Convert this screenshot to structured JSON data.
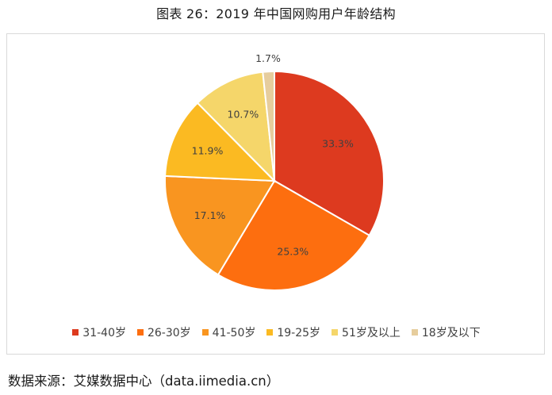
{
  "caption": "图表 26：2019 年中国网购用户年龄结构",
  "source": "数据来源：艾媒数据中心（data.iimedia.cn）",
  "chart_data": {
    "type": "pie",
    "title": "",
    "start_angle": "12 o'clock, clockwise",
    "slices": [
      {
        "label": "31-40岁",
        "value": 33.3,
        "display": "33.3%",
        "color": "#DD3A1F"
      },
      {
        "label": "26-30岁",
        "value": 25.3,
        "display": "25.3%",
        "color": "#FD6E0F"
      },
      {
        "label": "41-50岁",
        "value": 17.1,
        "display": "17.1%",
        "color": "#F99520"
      },
      {
        "label": "19-25岁",
        "value": 11.9,
        "display": "11.9%",
        "color": "#FBBA22"
      },
      {
        "label": "51岁及以上",
        "value": 10.7,
        "display": "10.7%",
        "color": "#F5D66A"
      },
      {
        "label": "18岁及以下",
        "value": 1.7,
        "display": "1.7%",
        "color": "#E6CD9D"
      }
    ],
    "legend_position": "bottom"
  }
}
